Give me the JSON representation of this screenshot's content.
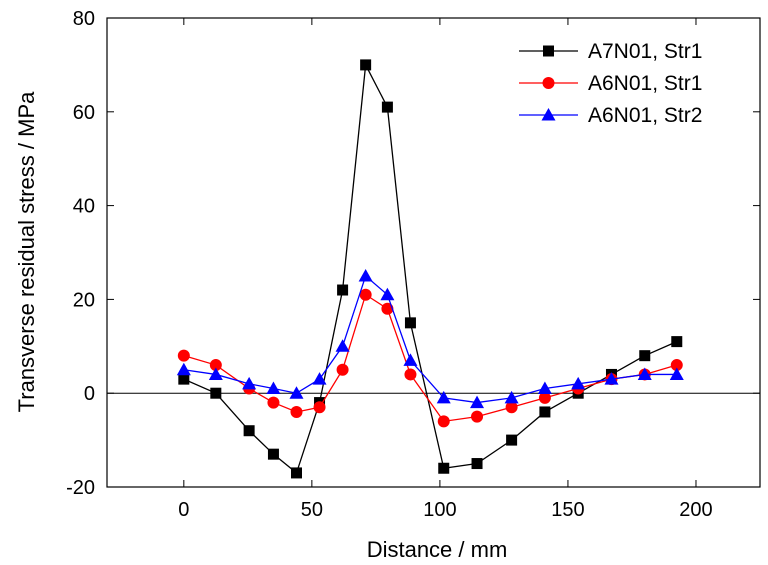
{
  "chart_data": {
    "type": "line",
    "title": "",
    "xlabel": "Distance / mm",
    "ylabel": "Transverse residual stress / MPa",
    "xlim": [
      -30,
      225
    ],
    "ylim": [
      -20,
      80
    ],
    "xticks": [
      0,
      50,
      100,
      150,
      200
    ],
    "yticks": [
      -20,
      0,
      20,
      40,
      60,
      80
    ],
    "zero_line": true,
    "grid": false,
    "legend_position": "top-right",
    "series": [
      {
        "name": "A7N01, Str1",
        "color": "#000000",
        "marker": "square",
        "x": [
          0,
          12.5,
          25.5,
          35,
          44,
          53,
          62,
          71,
          79.5,
          88.5,
          101.5,
          114.5,
          128,
          141,
          154,
          167,
          180,
          192.5
        ],
        "y": [
          3,
          0,
          -8,
          -13,
          -17,
          -2,
          22,
          70,
          61,
          15,
          -16,
          -15,
          -10,
          -4,
          0,
          4,
          8,
          11
        ]
      },
      {
        "name": "A6N01, Str1",
        "color": "#ff0000",
        "marker": "circle",
        "x": [
          0,
          12.5,
          25.5,
          35,
          44,
          53,
          62,
          71,
          79.5,
          88.5,
          101.5,
          114.5,
          128,
          141,
          154,
          167,
          180,
          192.5
        ],
        "y": [
          8,
          6,
          1,
          -2,
          -4,
          -3,
          5,
          21,
          18,
          4,
          -6,
          -5,
          -3,
          -1,
          1,
          3,
          4,
          6
        ]
      },
      {
        "name": "A6N01, Str2",
        "color": "#0000ff",
        "marker": "triangle",
        "x": [
          0,
          12.5,
          25.5,
          35,
          44,
          53,
          62,
          71,
          79.5,
          88.5,
          101.5,
          114.5,
          128,
          141,
          154,
          167,
          180,
          192.5
        ],
        "y": [
          5,
          4,
          2,
          1,
          0,
          3,
          10,
          25,
          21,
          7,
          -1,
          -2,
          -1,
          1,
          2,
          3,
          4,
          4
        ]
      }
    ]
  }
}
